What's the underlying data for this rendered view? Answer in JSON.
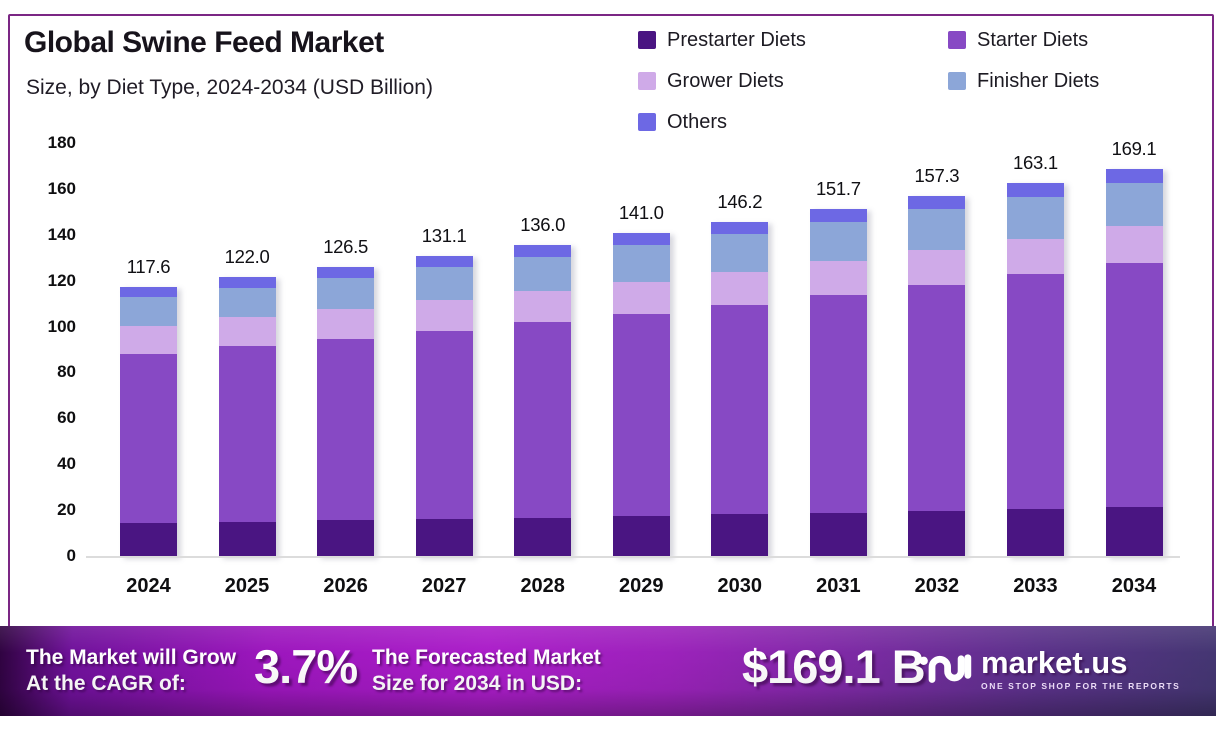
{
  "title": "Global Swine Feed Market",
  "subtitle": "Size, by Diet Type, 2024-2034 (USD Billion)",
  "chart_data": {
    "type": "bar",
    "stacked": true,
    "categories": [
      "2024",
      "2025",
      "2026",
      "2027",
      "2028",
      "2029",
      "2030",
      "2031",
      "2032",
      "2033",
      "2034"
    ],
    "series": [
      {
        "name": "Prestarter Diets",
        "color": "#4a1582",
        "values": [
          14.8,
          15.4,
          16.0,
          16.6,
          17.2,
          17.9,
          18.6,
          19.3,
          20.1,
          20.9,
          21.8
        ]
      },
      {
        "name": "Starter Diets",
        "color": "#8749c4",
        "values": [
          73.7,
          76.5,
          79.2,
          82.1,
          85.0,
          88.1,
          91.4,
          94.8,
          98.4,
          102.3,
          106.4
        ]
      },
      {
        "name": "Grower Diets",
        "color": "#cfaae8",
        "values": [
          12.3,
          12.6,
          13.0,
          13.3,
          13.6,
          14.0,
          14.4,
          14.8,
          15.2,
          15.6,
          16.1
        ]
      },
      {
        "name": "Finisher Diets",
        "color": "#8ca6d8",
        "values": [
          12.3,
          12.9,
          13.5,
          14.2,
          15.0,
          16.0,
          16.5,
          17.2,
          17.8,
          18.3,
          18.7
        ]
      },
      {
        "name": "Others",
        "color": "#6d68e4",
        "values": [
          4.5,
          4.6,
          4.8,
          4.9,
          5.2,
          5.0,
          5.3,
          5.6,
          5.8,
          6.0,
          6.1
        ]
      }
    ],
    "totals": [
      "117.6",
      "122.0",
      "126.5",
      "131.1",
      "136.0",
      "141.0",
      "146.2",
      "151.7",
      "157.3",
      "163.1",
      "169.1"
    ],
    "ylim": [
      0,
      180
    ],
    "yticks": [
      0,
      20,
      40,
      60,
      80,
      100,
      120,
      140,
      160,
      180
    ],
    "grid": false,
    "legend_position": "top-right"
  },
  "banner": {
    "cagr_label_line1": "The Market will Grow",
    "cagr_label_line2": "At the CAGR of:",
    "cagr_value": "3.7%",
    "forecast_label_line1": "The Forecasted Market",
    "forecast_label_line2": "Size for 2034 in USD:",
    "forecast_value": "$169.1 B",
    "brand_name": "market.us",
    "brand_tagline": "ONE STOP SHOP FOR THE REPORTS"
  },
  "colors": {
    "card_border": "#7b2684",
    "banner_accent": "#a41bc4",
    "axis_line": "#dcdcdc",
    "text": "#17131b"
  }
}
